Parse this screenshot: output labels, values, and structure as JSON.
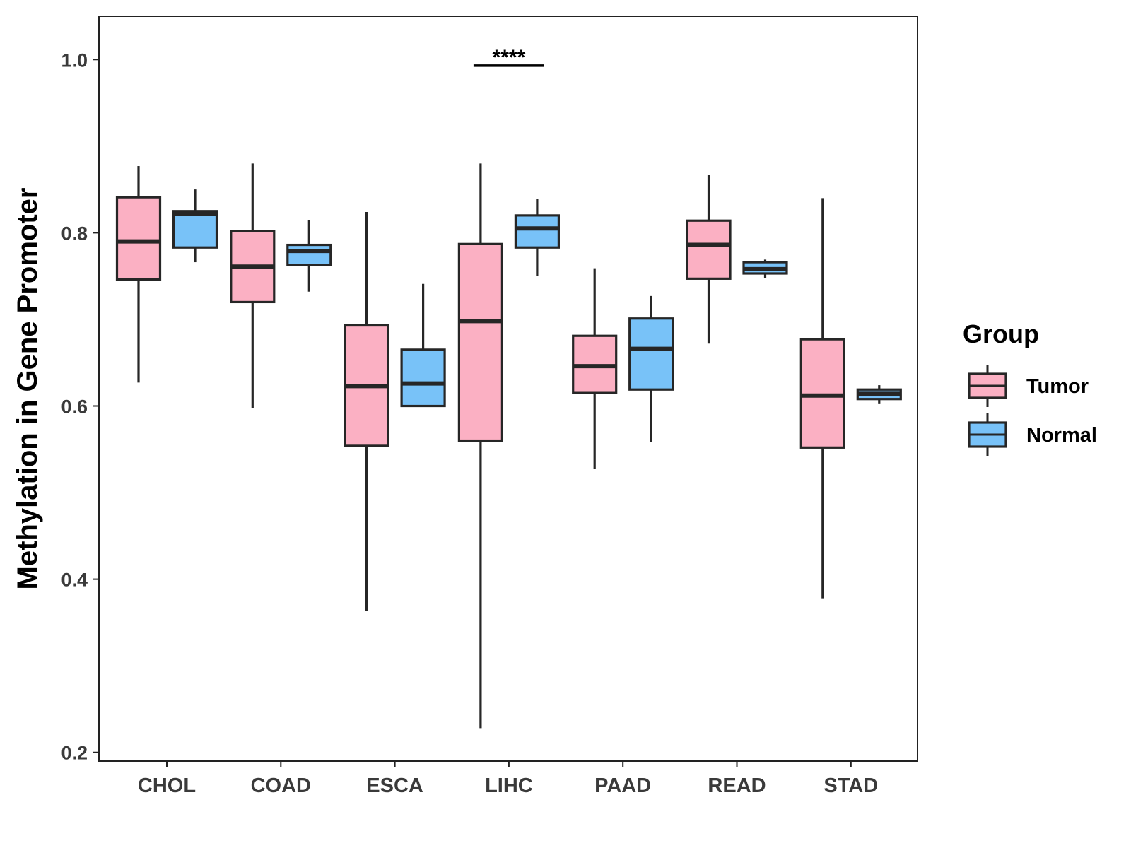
{
  "chart_data": {
    "type": "boxplot",
    "title": "",
    "xlabel": "",
    "ylabel": "Methylation in Gene Promoter",
    "ylim": [
      0.19,
      1.05
    ],
    "yticks": [
      0.2,
      0.4,
      0.6,
      0.8,
      1.0
    ],
    "ytick_labels": [
      "0.2",
      "0.4",
      "0.6",
      "0.8",
      "1.0"
    ],
    "categories": [
      "CHOL",
      "COAD",
      "ESCA",
      "LIHC",
      "PAAD",
      "READ",
      "STAD"
    ],
    "legend": {
      "title": "Group",
      "position": "right",
      "entries": [
        "Tumor",
        "Normal"
      ]
    },
    "colors": {
      "Tumor": "#fbb0c3",
      "Normal": "#78c2f8",
      "outline": "#262626"
    },
    "series": [
      {
        "name": "Tumor",
        "boxes": [
          {
            "min": 0.627,
            "q1": 0.746,
            "median": 0.79,
            "q3": 0.841,
            "max": 0.877
          },
          {
            "min": 0.598,
            "q1": 0.72,
            "median": 0.761,
            "q3": 0.802,
            "max": 0.88
          },
          {
            "min": 0.363,
            "q1": 0.554,
            "median": 0.623,
            "q3": 0.693,
            "max": 0.824
          },
          {
            "min": 0.228,
            "q1": 0.56,
            "median": 0.698,
            "q3": 0.787,
            "max": 0.88
          },
          {
            "min": 0.527,
            "q1": 0.615,
            "median": 0.646,
            "q3": 0.681,
            "max": 0.759
          },
          {
            "min": 0.672,
            "q1": 0.747,
            "median": 0.786,
            "q3": 0.814,
            "max": 0.867
          },
          {
            "min": 0.378,
            "q1": 0.552,
            "median": 0.612,
            "q3": 0.677,
            "max": 0.84
          }
        ]
      },
      {
        "name": "Normal",
        "boxes": [
          {
            "min": 0.766,
            "q1": 0.783,
            "median": 0.822,
            "q3": 0.825,
            "max": 0.85
          },
          {
            "min": 0.732,
            "q1": 0.763,
            "median": 0.779,
            "q3": 0.786,
            "max": 0.815
          },
          {
            "min": 0.6,
            "q1": 0.6,
            "median": 0.626,
            "q3": 0.665,
            "max": 0.741
          },
          {
            "min": 0.75,
            "q1": 0.783,
            "median": 0.805,
            "q3": 0.82,
            "max": 0.839
          },
          {
            "min": 0.558,
            "q1": 0.619,
            "median": 0.666,
            "q3": 0.701,
            "max": 0.727
          },
          {
            "min": 0.748,
            "q1": 0.753,
            "median": 0.758,
            "q3": 0.766,
            "max": 0.769
          },
          {
            "min": 0.603,
            "q1": 0.608,
            "median": 0.614,
            "q3": 0.619,
            "max": 0.624
          }
        ]
      }
    ],
    "annotations": [
      {
        "category": "LIHC",
        "text": "****",
        "y": 0.993
      }
    ]
  }
}
